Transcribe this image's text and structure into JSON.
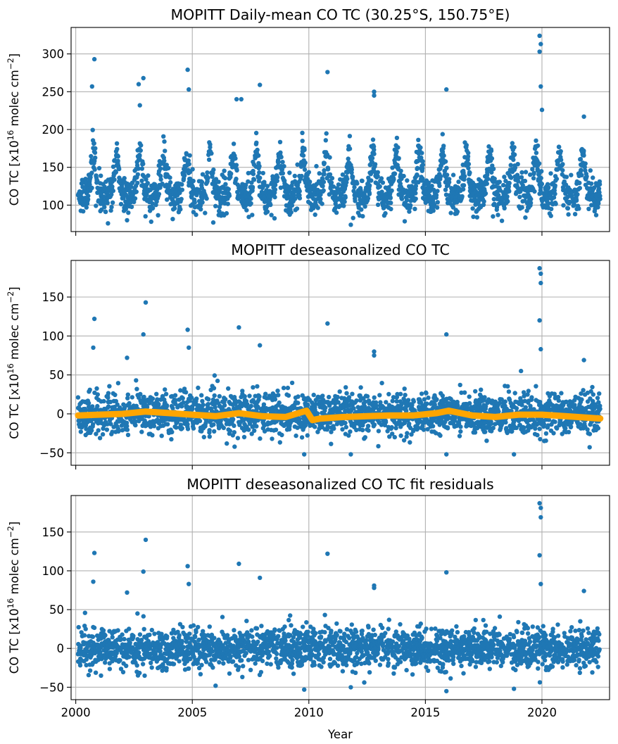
{
  "chart_data": [
    {
      "type": "scatter",
      "title": "MOPITT Daily-mean CO TC (30.25°S, 150.75°E)",
      "ylabel": "CO TC [x10^16 molec cm^-2]",
      "xlabel": "",
      "xlim": [
        1999.8,
        2022.9
      ],
      "ylim": [
        65,
        335
      ],
      "xticks": [
        2000,
        2005,
        2010,
        2015,
        2020
      ],
      "yticks": [
        100,
        150,
        200,
        250,
        300
      ],
      "show_xtick_labels": false,
      "grid": true,
      "colors": {
        "points": "#1f77b4"
      },
      "series": [
        {
          "kind": "seasonal",
          "x_range": [
            2000.1,
            2022.5
          ],
          "baseline": 118,
          "amplitude": 40,
          "peak_fraction": 0.75,
          "noise_sd": 12,
          "outliers": [
            [
              2000.8,
              293
            ],
            [
              2000.7,
              257
            ],
            [
              2002.9,
              268
            ],
            [
              2002.7,
              260
            ],
            [
              2002.75,
              232
            ],
            [
              2004.8,
              279
            ],
            [
              2004.85,
              253
            ],
            [
              2006.9,
              240
            ],
            [
              2007.1,
              240
            ],
            [
              2007.9,
              259
            ],
            [
              2010.8,
              276
            ],
            [
              2012.8,
              250
            ],
            [
              2012.8,
              245
            ],
            [
              2015.9,
              253
            ],
            [
              2019.9,
              324
            ],
            [
              2019.95,
              313
            ],
            [
              2019.9,
              303
            ],
            [
              2019.95,
              257
            ],
            [
              2020.0,
              226
            ],
            [
              2021.8,
              217
            ],
            [
              2002.2,
              80
            ],
            [
              2005.9,
              77
            ],
            [
              2011.8,
              74
            ],
            [
              2011.9,
              83
            ],
            [
              2017.9,
              85
            ]
          ]
        }
      ]
    },
    {
      "type": "scatter",
      "title": "MOPITT deseasonalized CO TC",
      "ylabel": "CO TC [x10^16 molec cm^-2]",
      "xlabel": "",
      "xlim": [
        1999.8,
        2022.9
      ],
      "ylim": [
        -66,
        197
      ],
      "xticks": [
        2000,
        2005,
        2010,
        2015,
        2020
      ],
      "yticks": [
        -50,
        0,
        50,
        100,
        150
      ],
      "show_xtick_labels": false,
      "grid": true,
      "colors": {
        "points": "#1f77b4",
        "trend": "#ffa500"
      },
      "series": [
        {
          "kind": "noise",
          "x_range": [
            2000.1,
            2022.5
          ],
          "noise_sd": 13,
          "outliers": [
            [
              2000.8,
              122
            ],
            [
              2000.75,
              85
            ],
            [
              2003.0,
              143
            ],
            [
              2002.9,
              102
            ],
            [
              2002.2,
              72
            ],
            [
              2004.8,
              108
            ],
            [
              2004.85,
              85
            ],
            [
              2007.0,
              111
            ],
            [
              2007.9,
              88
            ],
            [
              2010.8,
              116
            ],
            [
              2012.8,
              80
            ],
            [
              2012.8,
              75
            ],
            [
              2015.9,
              102
            ],
            [
              2019.9,
              187
            ],
            [
              2019.95,
              180
            ],
            [
              2019.95,
              168
            ],
            [
              2019.9,
              120
            ],
            [
              2019.95,
              83
            ],
            [
              2019.1,
              55
            ],
            [
              2021.8,
              69
            ],
            [
              2009.8,
              -52
            ],
            [
              2011.8,
              -52
            ],
            [
              2015.9,
              -52
            ],
            [
              2018.8,
              -52
            ]
          ]
        }
      ],
      "trend": {
        "name": "trend",
        "x": [
          2000.1,
          2001.0,
          2002.0,
          2003.0,
          2004.0,
          2005.0,
          2006.0,
          2007.0,
          2008.0,
          2009.0,
          2009.9,
          2010.15,
          2010.5,
          2011.5,
          2012.5,
          2013.5,
          2014.5,
          2015.5,
          2016.0,
          2017.0,
          2018.0,
          2019.0,
          2020.0,
          2021.0,
          2022.5
        ],
        "y": [
          -2,
          -1,
          0,
          3,
          1,
          -1,
          -3,
          1,
          -3,
          -4,
          4,
          -8,
          -6,
          -4,
          -3,
          -2,
          -2,
          1,
          4,
          -2,
          -4,
          -1,
          -1,
          -3,
          -6
        ]
      }
    },
    {
      "type": "scatter",
      "title": "MOPITT deseasonalized CO TC fit residuals",
      "ylabel": "CO TC [x10^16 molec cm^-2]",
      "xlabel": "Year",
      "xlim": [
        1999.8,
        2022.9
      ],
      "ylim": [
        -66,
        197
      ],
      "xticks": [
        2000,
        2005,
        2010,
        2015,
        2020
      ],
      "yticks": [
        -50,
        0,
        50,
        100,
        150
      ],
      "show_xtick_labels": true,
      "grid": true,
      "colors": {
        "points": "#1f77b4"
      },
      "series": [
        {
          "kind": "noise",
          "x_range": [
            2000.1,
            2022.5
          ],
          "noise_sd": 13,
          "outliers": [
            [
              2000.8,
              123
            ],
            [
              2000.75,
              86
            ],
            [
              2003.0,
              140
            ],
            [
              2002.9,
              99
            ],
            [
              2002.2,
              72
            ],
            [
              2004.8,
              106
            ],
            [
              2004.85,
              83
            ],
            [
              2007.0,
              109
            ],
            [
              2007.9,
              91
            ],
            [
              2010.8,
              122
            ],
            [
              2012.8,
              81
            ],
            [
              2012.8,
              78
            ],
            [
              2015.9,
              98
            ],
            [
              2019.9,
              187
            ],
            [
              2019.95,
              181
            ],
            [
              2019.95,
              169
            ],
            [
              2019.9,
              120
            ],
            [
              2019.95,
              83
            ],
            [
              2021.8,
              74
            ],
            [
              2009.8,
              -53
            ],
            [
              2011.8,
              -50
            ],
            [
              2015.9,
              -55
            ],
            [
              2018.8,
              -52
            ],
            [
              2006.0,
              -48
            ]
          ]
        }
      ]
    }
  ]
}
